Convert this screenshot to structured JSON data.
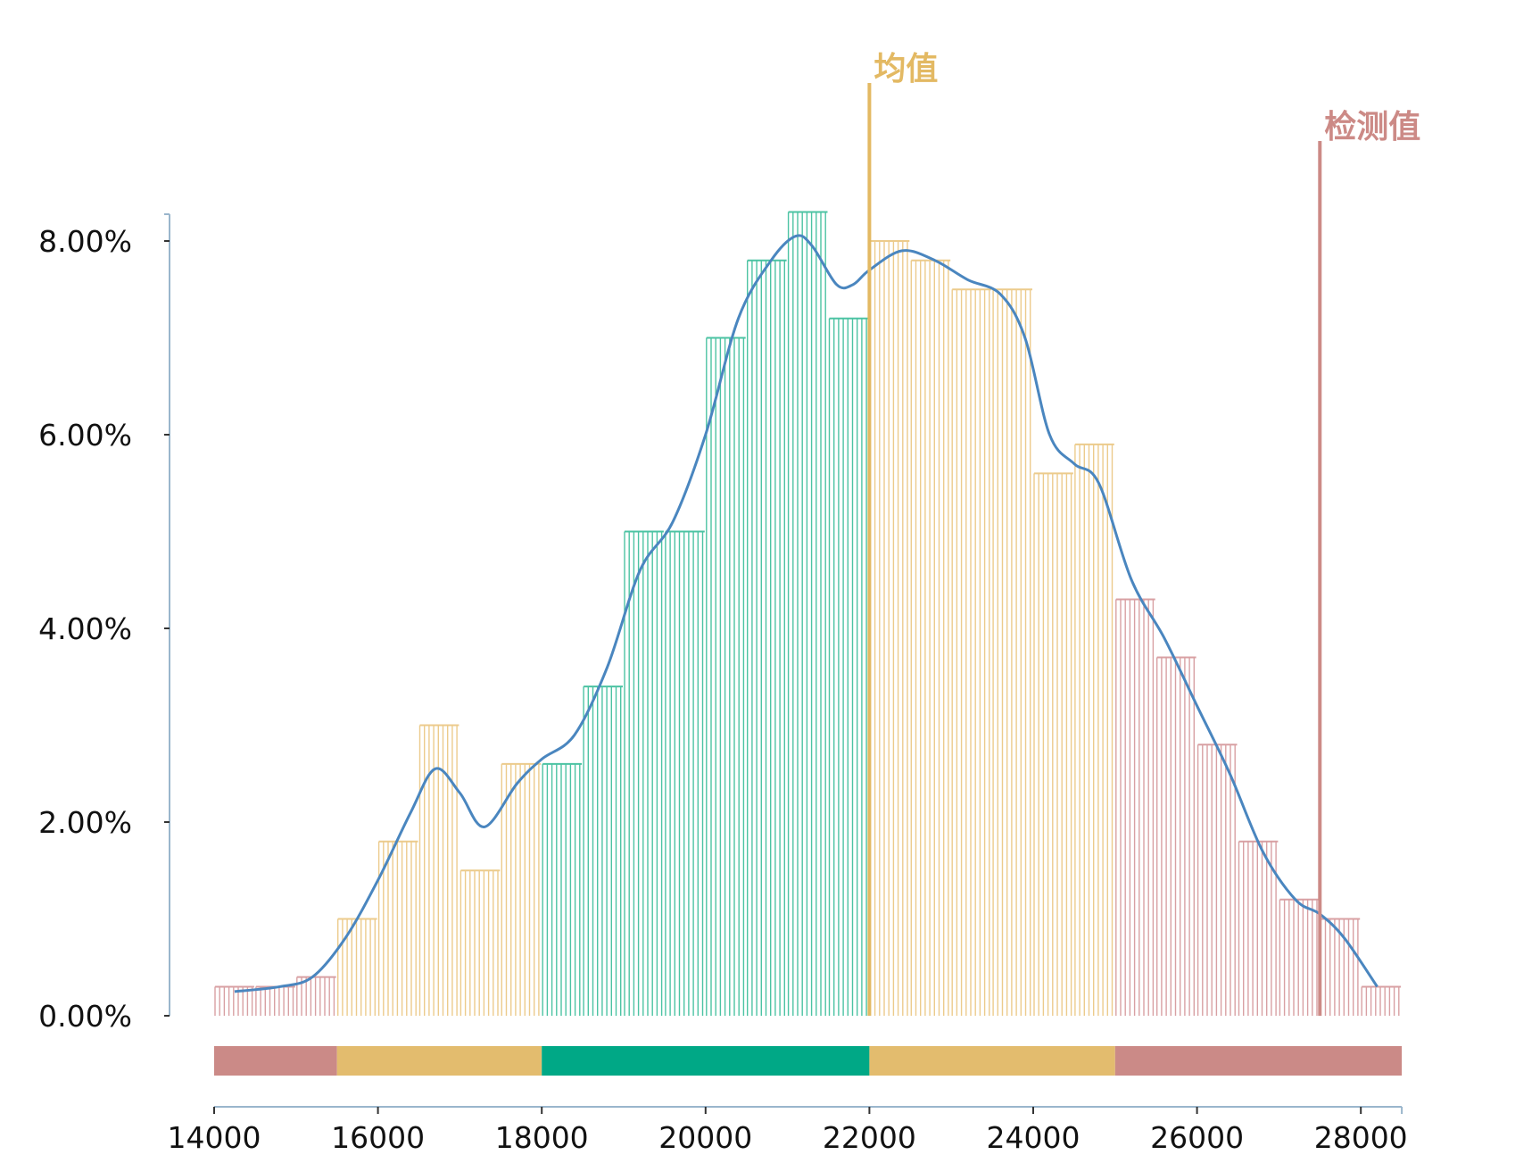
{
  "chart_data": {
    "type": "bar",
    "subtype": "histogram with density curve",
    "title": "",
    "xlabel": "",
    "ylabel": "",
    "xlim": [
      14000,
      28500
    ],
    "ylim": [
      0,
      8.3
    ],
    "x_ticks": [
      14000,
      16000,
      18000,
      20000,
      22000,
      24000,
      26000,
      28000
    ],
    "y_ticks": [
      0,
      2,
      4,
      6,
      8
    ],
    "y_tick_labels": [
      "0.00%",
      "2.00%",
      "4.00%",
      "6.00%",
      "8.00%"
    ],
    "bin_width": 500,
    "bins": [
      {
        "start": 14000,
        "value": 0.3
      },
      {
        "start": 14500,
        "value": 0.3
      },
      {
        "start": 15000,
        "value": 0.4
      },
      {
        "start": 15500,
        "value": 1.0
      },
      {
        "start": 16000,
        "value": 1.8
      },
      {
        "start": 16500,
        "value": 3.0
      },
      {
        "start": 17000,
        "value": 1.5
      },
      {
        "start": 17500,
        "value": 2.6
      },
      {
        "start": 18000,
        "value": 2.6
      },
      {
        "start": 18500,
        "value": 3.4
      },
      {
        "start": 19000,
        "value": 5.0
      },
      {
        "start": 19500,
        "value": 5.0
      },
      {
        "start": 20000,
        "value": 7.0
      },
      {
        "start": 20500,
        "value": 7.8
      },
      {
        "start": 21000,
        "value": 8.3
      },
      {
        "start": 21500,
        "value": 7.2
      },
      {
        "start": 22000,
        "value": 8.0
      },
      {
        "start": 22500,
        "value": 7.8
      },
      {
        "start": 23000,
        "value": 7.5
      },
      {
        "start": 23500,
        "value": 7.5
      },
      {
        "start": 24000,
        "value": 5.6
      },
      {
        "start": 24500,
        "value": 5.9
      },
      {
        "start": 25000,
        "value": 4.3
      },
      {
        "start": 25500,
        "value": 3.7
      },
      {
        "start": 26000,
        "value": 2.8
      },
      {
        "start": 26500,
        "value": 1.8
      },
      {
        "start": 27000,
        "value": 1.2
      },
      {
        "start": 27500,
        "value": 1.0
      },
      {
        "start": 28000,
        "value": 0.3
      }
    ],
    "density_curve": {
      "x": [
        14250,
        14800,
        15200,
        15600,
        16000,
        16400,
        16700,
        17000,
        17300,
        17700,
        18000,
        18400,
        18800,
        19200,
        19600,
        20000,
        20400,
        20800,
        21100,
        21300,
        21600,
        21800,
        22000,
        22400,
        22800,
        23200,
        23600,
        23900,
        24200,
        24500,
        24800,
        25200,
        25600,
        26000,
        26400,
        26800,
        27200,
        27500,
        27800,
        28200
      ],
      "y": [
        0.25,
        0.3,
        0.4,
        0.8,
        1.4,
        2.1,
        2.55,
        2.3,
        1.95,
        2.4,
        2.65,
        2.9,
        3.6,
        4.6,
        5.1,
        6.0,
        7.2,
        7.8,
        8.05,
        7.95,
        7.55,
        7.55,
        7.7,
        7.9,
        7.8,
        7.6,
        7.45,
        7.0,
        6.0,
        5.7,
        5.5,
        4.5,
        3.9,
        3.2,
        2.5,
        1.7,
        1.2,
        1.05,
        0.8,
        0.3
      ]
    },
    "bands": [
      {
        "from": 14000,
        "to": 15500,
        "color": "#cb8a87"
      },
      {
        "from": 15500,
        "to": 18000,
        "color": "#e3bc6e"
      },
      {
        "from": 18000,
        "to": 22000,
        "color": "#00a886"
      },
      {
        "from": 22000,
        "to": 25000,
        "color": "#e3bc6e"
      },
      {
        "from": 25000,
        "to": 28500,
        "color": "#cb8a87"
      }
    ],
    "markers": [
      {
        "label": "均值",
        "x": 22000,
        "color": "#e3b963"
      },
      {
        "label": "检测值",
        "x": 27500,
        "color": "#cc8a86"
      }
    ],
    "colors": {
      "red": "#d8a0a3",
      "yellow": "#eccb8c",
      "green": "#4cc3a3",
      "curve": "#4a86bf",
      "axis": "#9ab6cc"
    }
  }
}
